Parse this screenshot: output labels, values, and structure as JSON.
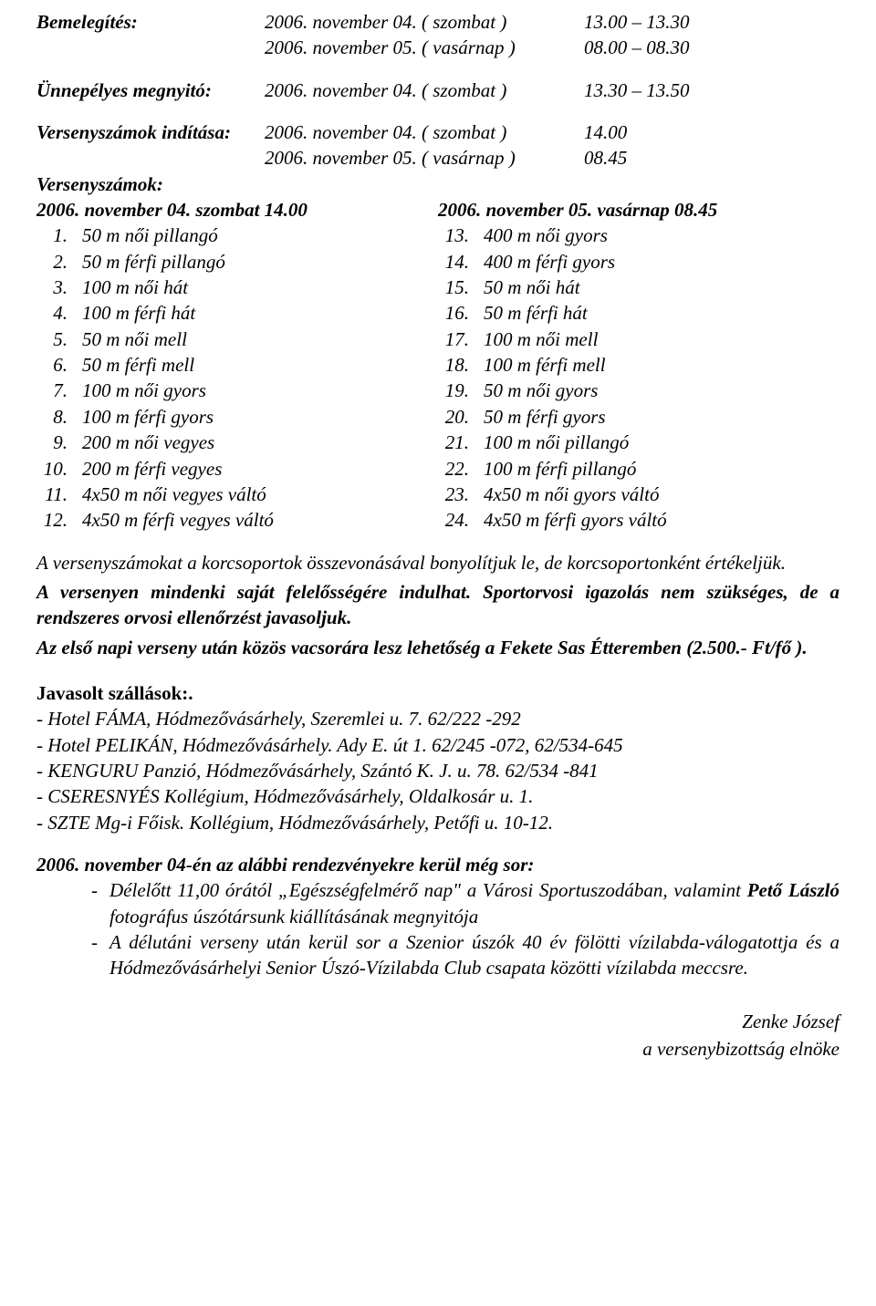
{
  "schedule": {
    "warmup_label": "Bemelegítés:",
    "warmup_rows": [
      {
        "date": "2006. november 04. ( szombat )",
        "time": "13.00 – 13.30"
      },
      {
        "date": "2006. november 05. ( vasárnap )",
        "time": "08.00 – 08.30"
      }
    ],
    "opening_label": "Ünnepélyes megnyitó:",
    "opening_row": {
      "date": "2006. november 04. ( szombat )",
      "time": "13.30 – 13.50"
    },
    "start_label": "Versenyszámok indítása:",
    "start_rows": [
      {
        "date": "2006. november 04. ( szombat )",
        "time": "14.00"
      },
      {
        "date": "2006. november 05. ( vasárnap )",
        "time": "08.45"
      }
    ],
    "events_label": "Versenyszámok:",
    "day1_header": "2006. november 04. szombat  14.00",
    "day1": [
      {
        "n": "1.",
        "e": "50 m női pillangó"
      },
      {
        "n": "2.",
        "e": "50 m férfi pillangó"
      },
      {
        "n": "3.",
        "e": "100 m női hát"
      },
      {
        "n": "4.",
        "e": "100 m férfi hát"
      },
      {
        "n": "5.",
        "e": "50 m női mell"
      },
      {
        "n": "6.",
        "e": "50 m férfi mell"
      },
      {
        "n": "7.",
        "e": "100 m női gyors"
      },
      {
        "n": "8.",
        "e": "100 m férfi gyors"
      },
      {
        "n": "9.",
        "e": "200 m női vegyes"
      },
      {
        "n": "10.",
        "e": "200 m férfi vegyes"
      },
      {
        "n": "11.",
        "e": "4x50 m női vegyes váltó"
      },
      {
        "n": "12.",
        "e": "4x50 m férfi vegyes váltó"
      }
    ],
    "day2_header": "2006. november 05. vasárnap  08.45",
    "day2": [
      {
        "n": "13.",
        "e": "400 m női gyors"
      },
      {
        "n": "14.",
        "e": "400 m férfi gyors"
      },
      {
        "n": "15.",
        "e": "50 m női hát"
      },
      {
        "n": "16.",
        "e": "50 m férfi hát"
      },
      {
        "n": "17.",
        "e": "100 m női mell"
      },
      {
        "n": "18.",
        "e": "100 m férfi mell"
      },
      {
        "n": "19.",
        "e": "50 m női gyors"
      },
      {
        "n": "20.",
        "e": "50 m férfi gyors"
      },
      {
        "n": "21.",
        "e": "100 m női pillangó"
      },
      {
        "n": "22.",
        "e": "100 m férfi pillangó"
      },
      {
        "n": "23.",
        "e": "4x50 m női gyors váltó"
      },
      {
        "n": "24.",
        "e": "4x50 m férfi gyors váltó"
      }
    ]
  },
  "notes": {
    "p1": "A versenyszámokat a korcsoportok összevonásával bonyolítjuk le, de korcsoportonként értékeljük.",
    "p2": "A versenyen mindenki saját felelősségére indulhat. Sportorvosi igazolás nem szükséges, de a rendszeres orvosi ellenőrzést javasoljuk.",
    "p3": "Az első napi verseny után közös vacsorára lesz lehetőség a Fekete Sas Étteremben (2.500.- Ft/fő )."
  },
  "hotels": {
    "heading": "Javasolt szállások:.",
    "list": [
      "- Hotel FÁMA, Hódmezővásárhely, Szeremlei u. 7.   62/222 -292",
      "- Hotel PELIKÁN, Hódmezővásárhely. Ady E. út 1.   62/245 -072, 62/534-645",
      "- KENGURU Panzió, Hódmezővásárhely, Szántó K. J. u. 78.   62/534 -841",
      "- CSERESNYÉS Kollégium, Hódmezővásárhely, Oldalkosár u. 1.",
      "- SZTE Mg-i Főisk. Kollégium, Hódmezővásárhely, Petőfi u. 10-12."
    ]
  },
  "additional": {
    "heading": "2006. november 04-én az alábbi rendezvényekre kerül még sor:",
    "item1_pre": "Délelőtt 11,00 órától „Egészségfelmérő nap\" a Városi Sportuszodában, valamint ",
    "item1_bold": "Pető László",
    "item1_post": " fotográfus úszótársunk kiállításának megnyitója",
    "item2": "A délutáni verseny után kerül sor a Szenior úszók 40 év fölötti vízilabda-válogatottja és a Hódmezővásárhelyi Senior Úszó-Vízilabda Club csapata közötti vízilabda meccsre."
  },
  "footer": {
    "name": "Zenke József",
    "title": "a versenybizottság elnöke"
  }
}
